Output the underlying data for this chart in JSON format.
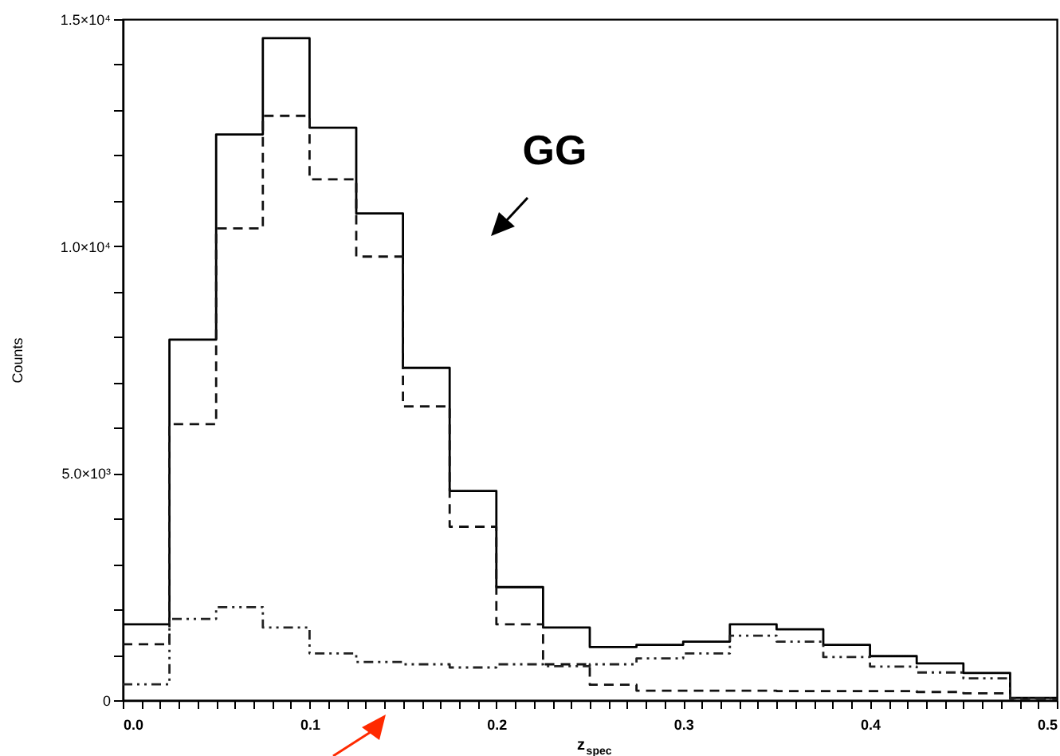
{
  "chart_data": {
    "type": "histogram",
    "xlabel": "z$_{spec}$",
    "ylabel": "Counts",
    "annotations": [
      "GG"
    ],
    "bins": [
      0,
      0.025,
      0.05,
      0.075,
      0.1,
      0.125,
      0.15,
      0.175,
      0.2,
      0.225,
      0.25,
      0.275,
      0.3,
      0.325,
      0.35,
      0.375,
      0.4,
      0.425,
      0.45,
      0.475,
      0.5
    ],
    "series": [
      {
        "color": "#000000",
        "line_style": "solid",
        "values": [
          1670,
          7940,
          12460,
          14580,
          12610,
          10720,
          7320,
          4610,
          2490,
          1600,
          1170,
          1220,
          1290,
          1670,
          1560,
          1220,
          970,
          810,
          600,
          50
        ]
      },
      {
        "color": "#111111",
        "line_style": "dashed",
        "values": [
          1230,
          6080,
          10390,
          12870,
          11470,
          9770,
          6470,
          3820,
          1670,
          790,
          340,
          210,
          210,
          210,
          200,
          200,
          200,
          180,
          150,
          30
        ]
      },
      {
        "color": "#222222",
        "line_style": "dotted",
        "values": [
          350,
          1790,
          2050,
          1600,
          1030,
          840,
          790,
          720,
          790,
          750,
          790,
          920,
          1030,
          1420,
          1290,
          950,
          740,
          610,
          480,
          40
        ]
      }
    ],
    "xlim": [
      0,
      0.5
    ],
    "ylim": [
      0,
      15000
    ],
    "xticks": [
      {
        "value": 0,
        "label": "0.0"
      },
      {
        "value": 0.01,
        "label": null
      },
      {
        "value": 0.02,
        "label": null
      },
      {
        "value": 0.03,
        "label": null
      },
      {
        "value": 0.04,
        "label": null
      },
      {
        "value": 0.05,
        "label": null
      },
      {
        "value": 0.06,
        "label": null
      },
      {
        "value": 0.07,
        "label": null
      },
      {
        "value": 0.08,
        "label": null
      },
      {
        "value": 0.09,
        "label": null
      },
      0.1,
      {
        "value": 0.11,
        "label": null
      },
      {
        "value": 0.12,
        "label": null
      },
      {
        "value": 0.13,
        "label": null
      },
      {
        "value": 0.14,
        "label": null
      },
      {
        "value": 0.15,
        "label": null
      },
      {
        "value": 0.16,
        "label": null
      },
      {
        "value": 0.17,
        "label": null
      },
      {
        "value": 0.18,
        "label": null
      },
      {
        "value": 0.19,
        "label": null
      },
      0.2,
      {
        "value": 0.21,
        "label": null
      },
      {
        "value": 0.22,
        "label": null
      },
      {
        "value": 0.23,
        "label": null
      },
      {
        "value": 0.24,
        "label": null
      },
      {
        "value": 0.25,
        "label": null
      },
      {
        "value": 0.26,
        "label": null
      },
      {
        "value": 0.27,
        "label": null
      },
      {
        "value": 0.28,
        "label": null
      },
      {
        "value": 0.29,
        "label": null
      },
      0.3,
      {
        "value": 0.31,
        "label": null
      },
      {
        "value": 0.32,
        "label": null
      },
      {
        "value": 0.33,
        "label": null
      },
      {
        "value": 0.34,
        "label": null
      },
      {
        "value": 0.35,
        "label": null
      },
      {
        "value": 0.36,
        "label": null
      },
      {
        "value": 0.37,
        "label": null
      },
      {
        "value": 0.38,
        "label": null
      },
      {
        "value": 0.39,
        "label": null
      },
      0.4,
      {
        "value": 0.41,
        "label": null
      },
      {
        "value": 0.42,
        "label": null
      },
      {
        "value": 0.43,
        "label": null
      },
      {
        "value": 0.44,
        "label": null
      },
      {
        "value": 0.45,
        "label": null
      },
      {
        "value": 0.46,
        "label": null
      },
      {
        "value": 0.47,
        "label": null
      },
      {
        "value": 0.48,
        "label": null
      },
      {
        "value": 0.49,
        "label": null
      },
      0.5
    ],
    "yticks": [
      0,
      {
        "value": 1000,
        "label": null
      },
      {
        "value": 2000,
        "label": null
      },
      {
        "value": 3000,
        "label": null
      },
      {
        "value": 4000,
        "label": null
      },
      {
        "value": 5000,
        "label": "5.0×10³"
      },
      {
        "value": 6000,
        "label": null
      },
      {
        "value": 7000,
        "label": null
      },
      {
        "value": 8000,
        "label": null
      },
      {
        "value": 9000,
        "label": null
      },
      {
        "value": 10000,
        "label": "1.0×10⁴"
      },
      {
        "value": 11000,
        "label": null
      },
      {
        "value": 12000,
        "label": null
      },
      {
        "value": 13000,
        "label": null
      },
      {
        "value": 14000,
        "label": null
      },
      {
        "value": 15000,
        "label": "1.5×10⁴"
      }
    ],
    "grid": false
  }
}
